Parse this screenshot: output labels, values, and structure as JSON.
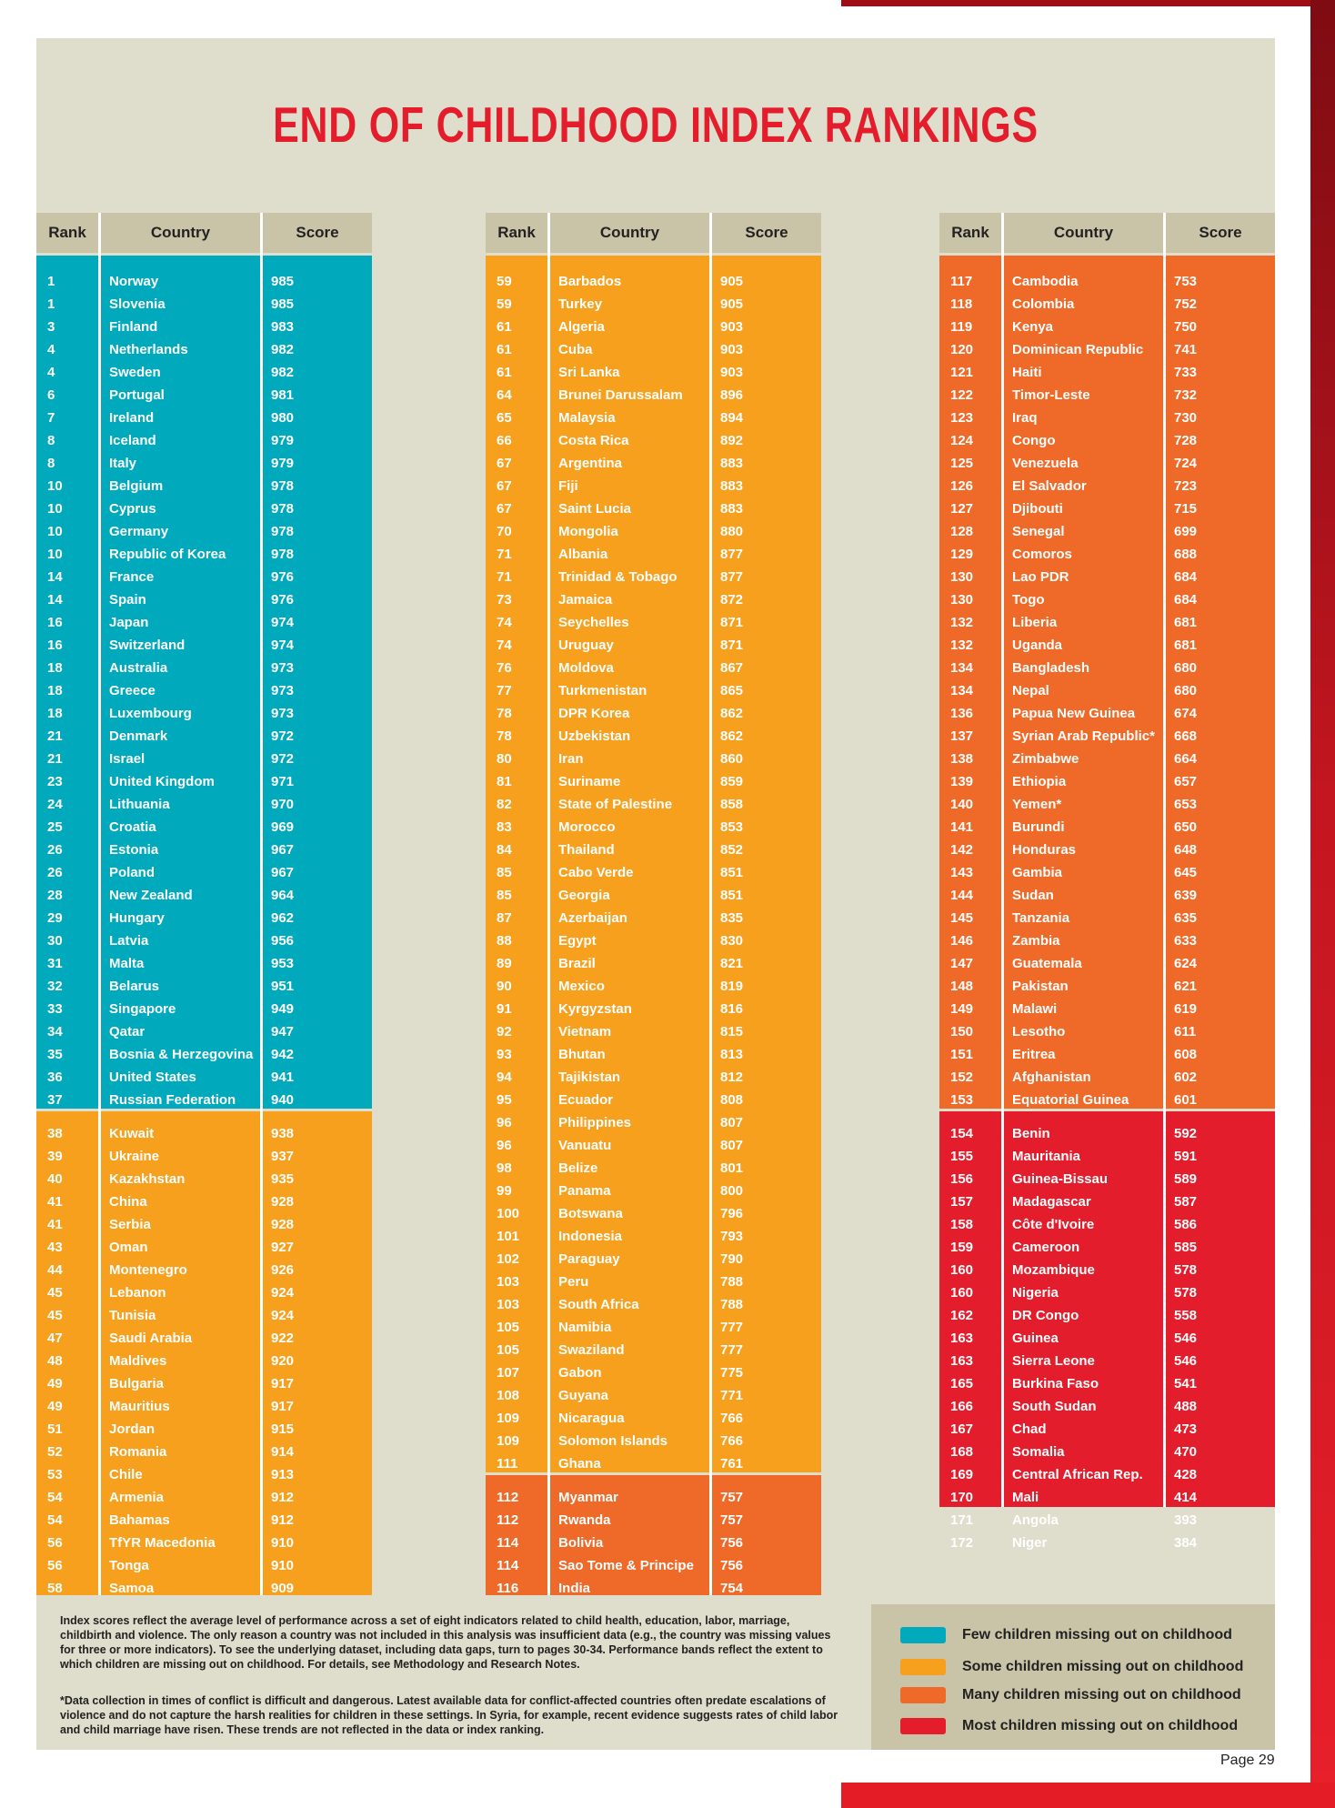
{
  "title": "END OF CHILDHOOD INDEX RANKINGS",
  "headers": {
    "rank": "Rank",
    "country": "Country",
    "score": "Score"
  },
  "columns": [
    {
      "rows": [
        [
          "1",
          "Norway",
          "985"
        ],
        [
          "1",
          "Slovenia",
          "985"
        ],
        [
          "3",
          "Finland",
          "983"
        ],
        [
          "4",
          "Netherlands",
          "982"
        ],
        [
          "4",
          "Sweden",
          "982"
        ],
        [
          "6",
          "Portugal",
          "981"
        ],
        [
          "7",
          "Ireland",
          "980"
        ],
        [
          "8",
          "Iceland",
          "979"
        ],
        [
          "8",
          "Italy",
          "979"
        ],
        [
          "10",
          "Belgium",
          "978"
        ],
        [
          "10",
          "Cyprus",
          "978"
        ],
        [
          "10",
          "Germany",
          "978"
        ],
        [
          "10",
          "Republic of Korea",
          "978"
        ],
        [
          "14",
          "France",
          "976"
        ],
        [
          "14",
          "Spain",
          "976"
        ],
        [
          "16",
          "Japan",
          "974"
        ],
        [
          "16",
          "Switzerland",
          "974"
        ],
        [
          "18",
          "Australia",
          "973"
        ],
        [
          "18",
          "Greece",
          "973"
        ],
        [
          "18",
          "Luxembourg",
          "973"
        ],
        [
          "21",
          "Denmark",
          "972"
        ],
        [
          "21",
          "Israel",
          "972"
        ],
        [
          "23",
          "United Kingdom",
          "971"
        ],
        [
          "24",
          "Lithuania",
          "970"
        ],
        [
          "25",
          "Croatia",
          "969"
        ],
        [
          "26",
          "Estonia",
          "967"
        ],
        [
          "26",
          "Poland",
          "967"
        ],
        [
          "28",
          "New Zealand",
          "964"
        ],
        [
          "29",
          "Hungary",
          "962"
        ],
        [
          "30",
          "Latvia",
          "956"
        ],
        [
          "31",
          "Malta",
          "953"
        ],
        [
          "32",
          "Belarus",
          "951"
        ],
        [
          "33",
          "Singapore",
          "949"
        ],
        [
          "34",
          "Qatar",
          "947"
        ],
        [
          "35",
          "Bosnia & Herzegovina",
          "942"
        ],
        [
          "36",
          "United States",
          "941"
        ],
        [
          "37",
          "Russian Federation",
          "940"
        ],
        [
          "38",
          "Kuwait",
          "938"
        ],
        [
          "39",
          "Ukraine",
          "937"
        ],
        [
          "40",
          "Kazakhstan",
          "935"
        ],
        [
          "41",
          "China",
          "928"
        ],
        [
          "41",
          "Serbia",
          "928"
        ],
        [
          "43",
          "Oman",
          "927"
        ],
        [
          "44",
          "Montenegro",
          "926"
        ],
        [
          "45",
          "Lebanon",
          "924"
        ],
        [
          "45",
          "Tunisia",
          "924"
        ],
        [
          "47",
          "Saudi Arabia",
          "922"
        ],
        [
          "48",
          "Maldives",
          "920"
        ],
        [
          "49",
          "Bulgaria",
          "917"
        ],
        [
          "49",
          "Mauritius",
          "917"
        ],
        [
          "51",
          "Jordan",
          "915"
        ],
        [
          "52",
          "Romania",
          "914"
        ],
        [
          "53",
          "Chile",
          "913"
        ],
        [
          "54",
          "Armenia",
          "912"
        ],
        [
          "54",
          "Bahamas",
          "912"
        ],
        [
          "56",
          "TfYR Macedonia",
          "910"
        ],
        [
          "56",
          "Tonga",
          "910"
        ],
        [
          "58",
          "Samoa",
          "909"
        ]
      ]
    },
    {
      "rows": [
        [
          "59",
          "Barbados",
          "905"
        ],
        [
          "59",
          "Turkey",
          "905"
        ],
        [
          "61",
          "Algeria",
          "903"
        ],
        [
          "61",
          "Cuba",
          "903"
        ],
        [
          "61",
          "Sri Lanka",
          "903"
        ],
        [
          "64",
          "Brunei Darussalam",
          "896"
        ],
        [
          "65",
          "Malaysia",
          "894"
        ],
        [
          "66",
          "Costa Rica",
          "892"
        ],
        [
          "67",
          "Argentina",
          "883"
        ],
        [
          "67",
          "Fiji",
          "883"
        ],
        [
          "67",
          "Saint Lucia",
          "883"
        ],
        [
          "70",
          "Mongolia",
          "880"
        ],
        [
          "71",
          "Albania",
          "877"
        ],
        [
          "71",
          "Trinidad & Tobago",
          "877"
        ],
        [
          "73",
          "Jamaica",
          "872"
        ],
        [
          "74",
          "Seychelles",
          "871"
        ],
        [
          "74",
          "Uruguay",
          "871"
        ],
        [
          "76",
          "Moldova",
          "867"
        ],
        [
          "77",
          "Turkmenistan",
          "865"
        ],
        [
          "78",
          "DPR Korea",
          "862"
        ],
        [
          "78",
          "Uzbekistan",
          "862"
        ],
        [
          "80",
          "Iran",
          "860"
        ],
        [
          "81",
          "Suriname",
          "859"
        ],
        [
          "82",
          "State of Palestine",
          "858"
        ],
        [
          "83",
          "Morocco",
          "853"
        ],
        [
          "84",
          "Thailand",
          "852"
        ],
        [
          "85",
          "Cabo Verde",
          "851"
        ],
        [
          "85",
          "Georgia",
          "851"
        ],
        [
          "87",
          "Azerbaijan",
          "835"
        ],
        [
          "88",
          "Egypt",
          "830"
        ],
        [
          "89",
          "Brazil",
          "821"
        ],
        [
          "90",
          "Mexico",
          "819"
        ],
        [
          "91",
          "Kyrgyzstan",
          "816"
        ],
        [
          "92",
          "Vietnam",
          "815"
        ],
        [
          "93",
          "Bhutan",
          "813"
        ],
        [
          "94",
          "Tajikistan",
          "812"
        ],
        [
          "95",
          "Ecuador",
          "808"
        ],
        [
          "96",
          "Philippines",
          "807"
        ],
        [
          "96",
          "Vanuatu",
          "807"
        ],
        [
          "98",
          "Belize",
          "801"
        ],
        [
          "99",
          "Panama",
          "800"
        ],
        [
          "100",
          "Botswana",
          "796"
        ],
        [
          "101",
          "Indonesia",
          "793"
        ],
        [
          "102",
          "Paraguay",
          "790"
        ],
        [
          "103",
          "Peru",
          "788"
        ],
        [
          "103",
          "South Africa",
          "788"
        ],
        [
          "105",
          "Namibia",
          "777"
        ],
        [
          "105",
          "Swaziland",
          "777"
        ],
        [
          "107",
          "Gabon",
          "775"
        ],
        [
          "108",
          "Guyana",
          "771"
        ],
        [
          "109",
          "Nicaragua",
          "766"
        ],
        [
          "109",
          "Solomon Islands",
          "766"
        ],
        [
          "111",
          "Ghana",
          "761"
        ],
        [
          "112",
          "Myanmar",
          "757"
        ],
        [
          "112",
          "Rwanda",
          "757"
        ],
        [
          "114",
          "Bolivia",
          "756"
        ],
        [
          "114",
          "Sao Tome & Principe",
          "756"
        ],
        [
          "116",
          "India",
          "754"
        ]
      ]
    },
    {
      "rows": [
        [
          "117",
          "Cambodia",
          "753"
        ],
        [
          "118",
          "Colombia",
          "752"
        ],
        [
          "119",
          "Kenya",
          "750"
        ],
        [
          "120",
          "Dominican Republic",
          "741"
        ],
        [
          "121",
          "Haiti",
          "733"
        ],
        [
          "122",
          "Timor-Leste",
          "732"
        ],
        [
          "123",
          "Iraq",
          "730"
        ],
        [
          "124",
          "Congo",
          "728"
        ],
        [
          "125",
          "Venezuela",
          "724"
        ],
        [
          "126",
          "El Salvador",
          "723"
        ],
        [
          "127",
          "Djibouti",
          "715"
        ],
        [
          "128",
          "Senegal",
          "699"
        ],
        [
          "129",
          "Comoros",
          "688"
        ],
        [
          "130",
          "Lao PDR",
          "684"
        ],
        [
          "130",
          "Togo",
          "684"
        ],
        [
          "132",
          "Liberia",
          "681"
        ],
        [
          "132",
          "Uganda",
          "681"
        ],
        [
          "134",
          "Bangladesh",
          "680"
        ],
        [
          "134",
          "Nepal",
          "680"
        ],
        [
          "136",
          "Papua New Guinea",
          "674"
        ],
        [
          "137",
          "Syrian Arab Republic*",
          "668"
        ],
        [
          "138",
          "Zimbabwe",
          "664"
        ],
        [
          "139",
          "Ethiopia",
          "657"
        ],
        [
          "140",
          "Yemen*",
          "653"
        ],
        [
          "141",
          "Burundi",
          "650"
        ],
        [
          "142",
          "Honduras",
          "648"
        ],
        [
          "143",
          "Gambia",
          "645"
        ],
        [
          "144",
          "Sudan",
          "639"
        ],
        [
          "145",
          "Tanzania",
          "635"
        ],
        [
          "146",
          "Zambia",
          "633"
        ],
        [
          "147",
          "Guatemala",
          "624"
        ],
        [
          "148",
          "Pakistan",
          "621"
        ],
        [
          "149",
          "Malawi",
          "619"
        ],
        [
          "150",
          "Lesotho",
          "611"
        ],
        [
          "151",
          "Eritrea",
          "608"
        ],
        [
          "152",
          "Afghanistan",
          "602"
        ],
        [
          "153",
          "Equatorial Guinea",
          "601"
        ],
        [
          "154",
          "Benin",
          "592"
        ],
        [
          "155",
          "Mauritania",
          "591"
        ],
        [
          "156",
          "Guinea-Bissau",
          "589"
        ],
        [
          "157",
          "Madagascar",
          "587"
        ],
        [
          "158",
          "Côte d'Ivoire",
          "586"
        ],
        [
          "159",
          "Cameroon",
          "585"
        ],
        [
          "160",
          "Mozambique",
          "578"
        ],
        [
          "160",
          "Nigeria",
          "578"
        ],
        [
          "162",
          "DR Congo",
          "558"
        ],
        [
          "163",
          "Guinea",
          "546"
        ],
        [
          "163",
          "Sierra Leone",
          "546"
        ],
        [
          "165",
          "Burkina Faso",
          "541"
        ],
        [
          "166",
          "South Sudan",
          "488"
        ],
        [
          "167",
          "Chad",
          "473"
        ],
        [
          "168",
          "Somalia",
          "470"
        ],
        [
          "169",
          "Central African Rep.",
          "428"
        ],
        [
          "170",
          "Mali",
          "414"
        ],
        [
          "171",
          "Angola",
          "393"
        ],
        [
          "172",
          "Niger",
          "384"
        ]
      ]
    }
  ],
  "colors": {
    "teal": "#00a9bb",
    "orange": "#f7a01e",
    "darkorange": "#ef6a28",
    "red": "#e31d2b"
  },
  "notes": {
    "para1": "Index scores reflect the average level of performance across a set of eight indicators related to child health, education, labor, marriage, childbirth and violence. The only reason a country was not included in this analysis was insufficient data (e.g., the country was missing values for three or more indicators). To see the underlying dataset, including data gaps, turn to pages 30-34. Performance bands reflect the extent to which children are missing out on childhood. For details, see Methodology and Research Notes.",
    "para2": "*Data collection in times of conflict is difficult and dangerous. Latest available data for conflict-affected countries often predate escalations of violence and do not capture the harsh realities for children in these settings. In Syria, for example, recent evidence suggests rates of child labor and child marriage have risen. These trends are not reflected in the data or index ranking."
  },
  "legend": [
    {
      "label": "Few children missing out on childhood",
      "color": "#00a9bb"
    },
    {
      "label": "Some children missing out on childhood",
      "color": "#f7a01e"
    },
    {
      "label": "Many children missing out on childhood",
      "color": "#ef6a28"
    },
    {
      "label": "Most children missing out on childhood",
      "color": "#e31d2b"
    }
  ],
  "page_number": "Page 29"
}
